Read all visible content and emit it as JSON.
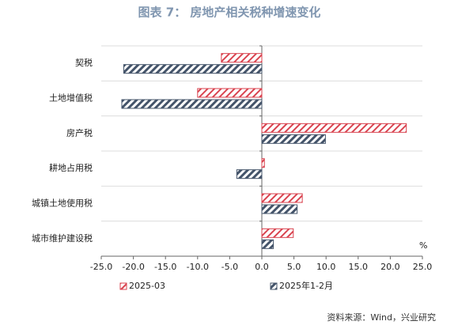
{
  "chart_data": {
    "type": "hbar",
    "title": "图表 7： 房地产相关税种增速变化",
    "categories": [
      "契税",
      "土地增值税",
      "房产税",
      "耕地占用税",
      "城镇土地使用税",
      "城市维护建设税"
    ],
    "series": [
      {
        "name": "2025-03",
        "color": "#d9434f",
        "values": [
          -6.3,
          -10.0,
          22.5,
          0.4,
          6.3,
          4.9
        ]
      },
      {
        "name": "2025年1-2月",
        "color": "#44546a",
        "values": [
          -21.5,
          -21.8,
          9.9,
          -3.9,
          5.5,
          1.8
        ]
      }
    ],
    "xlim": [
      -25,
      25
    ],
    "xticks": [
      {
        "value": -25,
        "label": "-25.0"
      },
      {
        "value": -20,
        "label": "-20.0"
      },
      {
        "value": -15,
        "label": "-15.0"
      },
      {
        "value": -10,
        "label": "-10.0"
      },
      {
        "value": -5,
        "label": "-5.0"
      },
      {
        "value": 0,
        "label": "0.0"
      },
      {
        "value": 5,
        "label": "5.0"
      },
      {
        "value": 10,
        "label": "10.0"
      },
      {
        "value": 15,
        "label": "15.0"
      },
      {
        "value": 20,
        "label": "20.0"
      },
      {
        "value": 25,
        "label": "25.0"
      }
    ],
    "unit": "%",
    "source": "资料来源：Wind，兴业研究",
    "legend": "bottom",
    "grid": true
  }
}
